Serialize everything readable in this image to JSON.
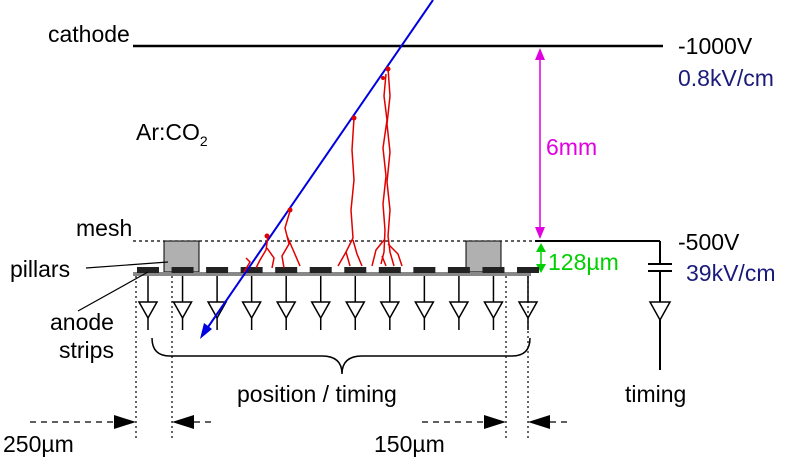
{
  "labels": {
    "cathode": "cathode",
    "cathode_voltage": "-1000V",
    "drift_field": "0.8kV/cm",
    "gas_prefix": "Ar:CO",
    "gas_subscript": "2",
    "drift_gap": "6mm",
    "mesh": "mesh",
    "mesh_voltage": "-500V",
    "amplification_field": "39kV/cm",
    "amplification_gap": "128µm",
    "pillars": "pillars",
    "anode_line1": "anode",
    "anode_line2": "strips",
    "position_timing": "position / timing",
    "timing": "timing",
    "pitch_left": "250µm",
    "width_right": "150µm"
  },
  "colors": {
    "drift_dimension": "#e000e0",
    "amplification_dimension": "#00d000",
    "field_text": "#1a1a7a",
    "particle_track": "#0000e0",
    "electron_avalanche": "#e00000",
    "pillar": "#b0b0b0",
    "strip": "#222222"
  },
  "strip_count": 12
}
